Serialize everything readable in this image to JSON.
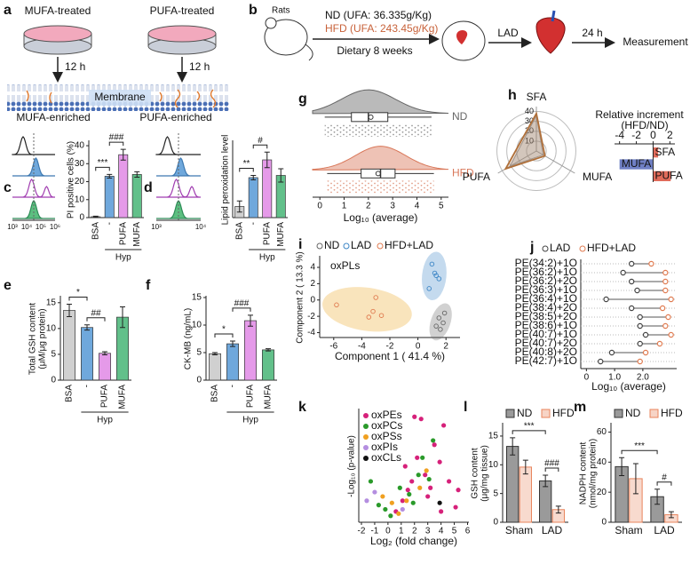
{
  "figure": {
    "a": {
      "label": "a",
      "left_title": "MUFA-treated",
      "right_title": "PUFA-treated",
      "left_time": "12 h",
      "right_time": "12 h",
      "membrane": "Membrane",
      "left_result": "MUFA-enriched",
      "right_result": "PUFA-enriched"
    },
    "b": {
      "label": "b",
      "animal": "Rats",
      "nd": "ND (UFA: 36.335g/Kg)",
      "hfd": "HFD (UFA: 243.45g/Kg)",
      "diet": "Dietary 8 weeks",
      "surgery": "LAD",
      "time": "24 h",
      "end": "Measurement"
    }
  },
  "chart_data": [
    {
      "type": "bar",
      "panel": "c",
      "ylabel": "PI positive cells (%)",
      "categories": [
        "BSA",
        "-",
        "PUFA",
        "MUFA"
      ],
      "values": [
        0.5,
        23,
        35,
        24
      ],
      "errors": [
        0.3,
        1,
        3,
        1.5
      ],
      "colors": [
        "#d0d0d0",
        "#6fa8dc",
        "#e59ae9",
        "#62c08a"
      ],
      "ylim": [
        0,
        42
      ],
      "yticks": [
        0,
        10,
        20,
        30,
        40
      ],
      "group_label": "Hyp",
      "annotations": [
        "***",
        "###"
      ],
      "histogram_ticks": [
        "10³",
        "10⁴",
        "10⁵",
        "10⁶"
      ]
    },
    {
      "type": "bar",
      "panel": "d",
      "ylabel": "Lipid peroxidation level",
      "categories": [
        "BSA",
        "-",
        "PUFA",
        "MUFA"
      ],
      "values": [
        1,
        3.6,
        5.2,
        3.8
      ],
      "errors": [
        0.5,
        0.2,
        0.7,
        0.6
      ],
      "colors": [
        "#d0d0d0",
        "#6fa8dc",
        "#e59ae9",
        "#62c08a"
      ],
      "ylim": [
        0,
        6.8
      ],
      "group_label": "Hyp",
      "annotations": [
        "**",
        "#"
      ],
      "histogram_ticks": [
        "10³",
        "10⁴"
      ]
    },
    {
      "type": "bar",
      "panel": "e",
      "ylabel": [
        "Total GSH content",
        "(μM/μg protein)"
      ],
      "categories": [
        "BSA",
        "-",
        "PUFA",
        "MUFA"
      ],
      "values": [
        13.5,
        10.2,
        5.2,
        12.2
      ],
      "errors": [
        1.2,
        0.5,
        0.3,
        2
      ],
      "colors": [
        "#d0d0d0",
        "#6fa8dc",
        "#e59ae9",
        "#62c08a"
      ],
      "ylim": [
        0,
        16
      ],
      "yticks": [
        0,
        5,
        10,
        15
      ],
      "group_label": "Hyp",
      "annotations": [
        "*",
        "##"
      ]
    },
    {
      "type": "bar",
      "panel": "f",
      "ylabel": "CK-MB (ng/mL)",
      "categories": [
        "BSA",
        "-",
        "PUFA",
        "MUFA"
      ],
      "values": [
        4.8,
        6.6,
        10.8,
        5.5
      ],
      "errors": [
        0.2,
        0.5,
        1,
        0.2
      ],
      "colors": [
        "#d0d0d0",
        "#6fa8dc",
        "#e59ae9",
        "#62c08a"
      ],
      "ylim": [
        0,
        15
      ],
      "yticks": [
        0,
        5,
        10,
        15
      ],
      "group_label": "Hyp",
      "annotations": [
        "*",
        "###"
      ]
    },
    {
      "type": "box",
      "panel": "g",
      "xlabel": "Log₁₀ (average)",
      "xlim": [
        -0.3,
        5.3
      ],
      "xticks": [
        0,
        1,
        2,
        3,
        4,
        5
      ],
      "series": [
        {
          "name": "ND",
          "color": "#666666",
          "whisker_low": 0.2,
          "q1": 1.3,
          "median": 2.0,
          "q3": 2.8,
          "whisker_high": 4.6,
          "mean": 2.1
        },
        {
          "name": "HFD",
          "color": "#d9785a",
          "whisker_low": 0.3,
          "q1": 1.7,
          "median": 2.5,
          "q3": 3.1,
          "whisker_high": 4.7,
          "mean": 2.4
        }
      ]
    },
    {
      "type": "radar",
      "panel": "h",
      "categories": [
        "SFA",
        "MUFA",
        "PUFA"
      ],
      "rlim": [
        0,
        45
      ],
      "rticks": [
        10,
        20,
        30,
        40
      ],
      "series": [
        {
          "color": "#9a9a9a",
          "values": [
            36,
            8,
            31
          ]
        },
        {
          "color": "#b0703a",
          "values": [
            38,
            10,
            36
          ]
        }
      ]
    },
    {
      "type": "hbar",
      "title": "Relative increment",
      "subtitle": "(HFD/ND)",
      "categories": [
        "SFA",
        "MUFA",
        "PUFA"
      ],
      "values": [
        0.6,
        -4,
        2.1
      ],
      "colors": [
        "#e06b5a",
        "#6f7fc4",
        "#e06b5a"
      ],
      "xlim": [
        -4.6,
        2.6
      ],
      "xticks": [
        -4,
        -2,
        0,
        2
      ]
    },
    {
      "type": "scatter",
      "panel": "i",
      "title": "oxPLs",
      "xlabel": "Component 1 ( 41.4 %)",
      "ylabel": "Component 2 ( 13.3 %)",
      "xlim": [
        -7,
        3
      ],
      "ylim": [
        -4.6,
        5.2
      ],
      "xticks": [
        -6,
        -4,
        -2,
        0,
        2
      ],
      "yticks": [
        -4,
        -2,
        0,
        2,
        4
      ],
      "series": [
        {
          "name": "ND",
          "color": "#666666",
          "x": [
            1.5,
            1.8,
            1.3,
            1.9,
            1.6
          ],
          "values": [
            -2.2,
            -2.8,
            -3.2,
            -1.6,
            -3.6
          ]
        },
        {
          "name": "LAD",
          "color": "#3d86c6",
          "x": [
            1.0,
            1.3,
            0.8,
            1.5,
            1.2
          ],
          "values": [
            4.4,
            3.0,
            1.4,
            2.6,
            3.3
          ]
        },
        {
          "name": "HFD+LAD",
          "color": "#e07b50",
          "x": [
            -5.8,
            -3.2,
            -2.6,
            -3.5,
            -3.0
          ],
          "values": [
            -0.6,
            -1.4,
            -1.9,
            -2.1,
            0.3
          ]
        }
      ]
    },
    {
      "type": "dumbbell",
      "panel": "j",
      "xlabel": "Log₁₀ (average)",
      "categories": [
        "PE(34:2)+1O",
        "PE(36:2)+1O",
        "PE(36:2)+2O",
        "PE(36:3)+1O",
        "PE(36:4)+1O",
        "PE(38:4)+2O",
        "PE(38:5)+2O",
        "PE(38:6)+1O",
        "PE(40:7)+1O",
        "PE(40:7)+2O",
        "PE(40:8)+2O",
        "PE(42:7)+1O"
      ],
      "xlim": [
        -0.2,
        3.2
      ],
      "xticks": [
        0,
        {
          "value": 1,
          "label": "1.0"
        },
        {
          "value": 2,
          "label": "2.0"
        }
      ],
      "series": [
        {
          "name": "LAD",
          "color": "#444444",
          "values": [
            1.6,
            1.3,
            1.6,
            1.8,
            0.7,
            1.6,
            1.9,
            1.9,
            2.1,
            1.9,
            0.9,
            0.5
          ]
        },
        {
          "name": "HFD+LAD",
          "color": "#e07b50",
          "values": [
            2.3,
            2.8,
            2.8,
            2.8,
            3.0,
            2.7,
            2.9,
            2.8,
            3.0,
            2.6,
            2.1,
            1.9
          ]
        }
      ]
    },
    {
      "type": "scatter",
      "panel": "k",
      "xlabel": "Log₂ (fold change)",
      "ylabel": "-Log₁₀ (p-value)",
      "xlim": [
        -2.2,
        6.1
      ],
      "ylim": [
        0,
        5.2
      ],
      "xticks": [
        -2,
        -1,
        0,
        1,
        2,
        3,
        4,
        5,
        6
      ],
      "series": [
        {
          "name": "oxPEs",
          "color": "#d6217a",
          "x": [
            0.6,
            1.1,
            1.5,
            1.8,
            2.2,
            2.5,
            2.8,
            3.2,
            3.5,
            3.9,
            4.2,
            4.6,
            5.1,
            5.3,
            2.0,
            3.0,
            1.3,
            4.0
          ],
          "values": [
            0.5,
            1.0,
            1.5,
            1.9,
            3.0,
            4.8,
            2.2,
            1.6,
            3.6,
            2.8,
            4.5,
            1.9,
            0.7,
            1.5,
            4.9,
            1.2,
            2.6,
            0.5
          ]
        },
        {
          "name": "oxPCs",
          "color": "#2a9a2a",
          "x": [
            -1.3,
            -0.7,
            0.2,
            0.9,
            1.6,
            2.3,
            2.6,
            3.1,
            3.4,
            1.9,
            -0.2
          ],
          "values": [
            1.9,
            0.8,
            0.3,
            1.6,
            1.3,
            2.2,
            3.0,
            2.0,
            3.8,
            0.9,
            0.6
          ]
        },
        {
          "name": "oxPSs",
          "color": "#f0a020",
          "x": [
            -0.4,
            0.3,
            0.8,
            1.4,
            2.4,
            2.9
          ],
          "values": [
            1.2,
            0.9,
            0.4,
            1.0,
            1.6,
            2.4
          ]
        },
        {
          "name": "oxPIs",
          "color": "#b48ee0",
          "x": [
            -1.6,
            -1.0,
            1.1
          ],
          "values": [
            1.0,
            1.4,
            0.6
          ]
        },
        {
          "name": "oxCLs",
          "color": "#111111",
          "x": [
            3.9
          ],
          "values": [
            0.9
          ]
        }
      ]
    },
    {
      "type": "grouped_bar",
      "panel": "l",
      "ylabel": [
        "GSH content",
        "(μg/mg tissue)"
      ],
      "categories": [
        "Sham",
        "LAD"
      ],
      "ylim": [
        0,
        17
      ],
      "yticks": [
        0,
        5,
        10,
        15
      ],
      "series": [
        {
          "name": "ND",
          "color": "#9a9a9a",
          "values": [
            13.2,
            7.2
          ],
          "errors": [
            1.5,
            1
          ]
        },
        {
          "name": "HFD",
          "color": "#e8845c",
          "values": [
            9.6,
            2.2
          ],
          "errors": [
            1.2,
            0.6
          ]
        }
      ],
      "annotations": [
        "***",
        "###"
      ]
    },
    {
      "type": "grouped_bar",
      "panel": "m",
      "ylabel": [
        "NADPH content",
        "(nmol/mg protein)"
      ],
      "categories": [
        "Sham",
        "LAD"
      ],
      "ylim": [
        0,
        65
      ],
      "yticks": [
        0,
        20,
        40,
        60
      ],
      "series": [
        {
          "name": "ND",
          "color": "#9a9a9a",
          "values": [
            37,
            17
          ],
          "errors": [
            6,
            5
          ]
        },
        {
          "name": "HFD",
          "color": "#e8845c",
          "values": [
            29,
            5
          ],
          "errors": [
            10,
            2
          ]
        }
      ],
      "annotations": [
        "***",
        "#"
      ]
    }
  ]
}
